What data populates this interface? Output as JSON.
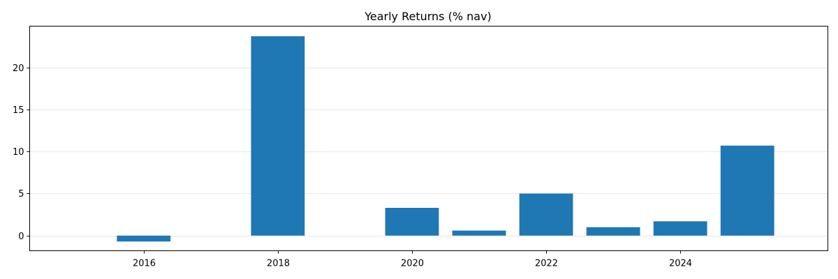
{
  "chart_data": {
    "type": "bar",
    "title": "Yearly Returns (% nav)",
    "xlabel": "",
    "ylabel": "",
    "x": [
      2016,
      2018,
      2020,
      2021,
      2022,
      2023,
      2024,
      2025
    ],
    "values": [
      -0.7,
      23.7,
      3.3,
      0.6,
      5.0,
      1.0,
      1.7,
      10.7
    ],
    "xlim": [
      2014.3,
      2026.2
    ],
    "ylim": [
      -1.8,
      24.9
    ],
    "xticks": [
      2016,
      2018,
      2020,
      2022,
      2024
    ],
    "xtick_labels": [
      "2016",
      "2018",
      "2020",
      "2022",
      "2024"
    ],
    "yticks": [
      0,
      5,
      10,
      15,
      20
    ],
    "ytick_labels": [
      "0",
      "5",
      "10",
      "15",
      "20"
    ],
    "bar_width": 0.8,
    "grid": "horizontal",
    "legend": "none",
    "bar_color": "#1f77b4"
  }
}
